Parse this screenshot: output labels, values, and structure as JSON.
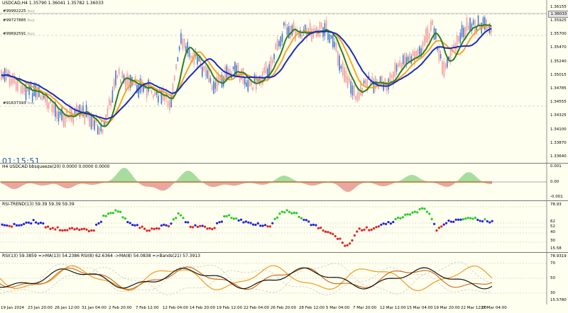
{
  "chart_header": {
    "symbol": "USDCAD,H4",
    "ohlc": "1.35790 1.36041 1.35782 1.36033"
  },
  "orders": [
    {
      "id": "#99992225",
      "side": "buy"
    },
    {
      "id": "#99727885",
      "side": "buy"
    },
    {
      "id": "#99692591",
      "side": "buy"
    },
    {
      "id": "#91637393",
      "side": "buy"
    }
  ],
  "timer": "01:15:51",
  "price_axis": {
    "current": "1.36033",
    "labels": [
      "1.36155",
      "1.35925",
      "1.35700",
      "1.35470",
      "1.35240",
      "1.35015",
      "1.34785",
      "1.34555",
      "1.34325",
      "1.34100",
      "1.33870",
      "1.33640"
    ]
  },
  "indicator1": {
    "title": "H4 USDCAD bbsqueeze(20) 0.0000 0.0000 0.0000",
    "axis": [
      "0.001",
      "0.00",
      "-0.001"
    ]
  },
  "indicator2": {
    "title": "RSI-TREND(13) 59.39 59.39 59.39",
    "axis": [
      "78.93",
      "62",
      "52",
      "40",
      "30",
      "15.58"
    ]
  },
  "indicator3": {
    "title": "RSI(13) 59.3859  =>MA(13) 54.2386  RSI(8) 62.6364  ->MA(8) 54.0838  =>Bands(21) 57.3913",
    "axis": [
      "78.9319",
      "70",
      "50",
      "30",
      "15.5780"
    ]
  },
  "time_axis": [
    "19 Jan 2024",
    "23 Jan 20:00",
    "26 Jan 12:00",
    "31 Jan 04:00",
    "2 Feb 20:00",
    "7 Feb 12:00",
    "12 Feb 04:00",
    "14 Feb 20:00",
    "19 Feb 12:00",
    "22 Feb 04:00",
    "26 Feb 20:00",
    "28 Feb 12:00",
    "5 Mar 04:00",
    "7 Mar 20:00",
    "12 Mar 12:00",
    "15 Mar 04:00",
    "19 Mar 20:00",
    "22 Mar 12:00",
    "27 Mar 04:00"
  ],
  "colors": {
    "background": "#fffff0",
    "bull_candle": "#4a78c8",
    "bear_candle": "#f0a0a0",
    "ma_fast": "#2e7d1e",
    "ma_orange": "#f5a623",
    "ma_slow": "#1a2bbf",
    "rsi_up": "#22cc22",
    "rsi_down": "#e02020",
    "rsi_neutral": "#2020dd"
  }
}
